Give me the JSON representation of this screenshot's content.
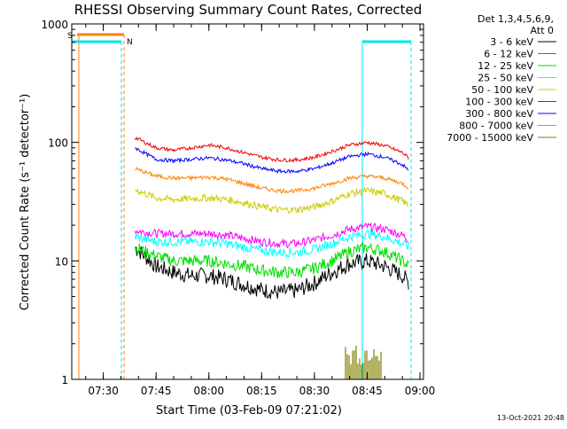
{
  "chart_data": {
    "type": "line",
    "title": "RHESSI Observing Summary Count Rates, Corrected",
    "xlabel": "Start Time (03-Feb-09 07:21:02)",
    "ylabel": "Corrected Count Rate (s⁻¹ detector⁻¹)",
    "y_scale": "log",
    "ylim": [
      1,
      1000
    ],
    "xlim": [
      "07:21:02",
      "09:01:00"
    ],
    "x_ticks": [
      "07:30",
      "07:45",
      "08:00",
      "08:15",
      "08:30",
      "08:45",
      "09:00"
    ],
    "y_ticks": [
      "1",
      "10",
      "100",
      "1000"
    ],
    "legend_position": "right",
    "legend_header": [
      "Det 1,3,4,5,6,9,",
      "Att 0"
    ],
    "x_sample_times": [
      "07:22",
      "07:38",
      "07:39",
      "07:45",
      "07:50",
      "07:55",
      "08:00",
      "08:05",
      "08:10",
      "08:15",
      "08:20",
      "08:25",
      "08:30",
      "08:35",
      "08:40",
      "08:45",
      "08:50",
      "08:55",
      "08:57"
    ],
    "series": [
      {
        "name": "3 - 6 keV",
        "color": "#000000",
        "values": [
          null,
          null,
          13,
          9,
          8,
          7.5,
          7.5,
          7,
          6.3,
          5.7,
          5.4,
          5.6,
          6.5,
          8,
          9.5,
          10,
          9,
          7.5,
          6.5
        ]
      },
      {
        "name": "6 - 12 keV",
        "color": "#ff00ff",
        "values": [
          null,
          null,
          18,
          17,
          17,
          17,
          17,
          16.5,
          15.5,
          14.5,
          14,
          14,
          15,
          16.5,
          18.5,
          19.5,
          18.5,
          16.5,
          15
        ]
      },
      {
        "name": "12 - 25 keV",
        "color": "#00dd00",
        "values": [
          null,
          null,
          13,
          11,
          10,
          10,
          10,
          9.5,
          9,
          8.3,
          8,
          8,
          8.7,
          10,
          12,
          13,
          12,
          10,
          9
        ]
      },
      {
        "name": "25 - 50 keV",
        "color": "#00ffff",
        "values": [
          null,
          null,
          16,
          14.5,
          14.5,
          14.5,
          14.5,
          14,
          13,
          12.3,
          11.8,
          11.8,
          12.5,
          14,
          16,
          17,
          16,
          14,
          13
        ]
      },
      {
        "name": "50 - 100 keV",
        "color": "#cccc00",
        "values": [
          null,
          null,
          40,
          34,
          33,
          33.5,
          34,
          33,
          31,
          28.5,
          27,
          27,
          28.5,
          32,
          37,
          39,
          37,
          32,
          29
        ]
      },
      {
        "name": "100 - 300 keV",
        "color": "#ee0000",
        "values": [
          null,
          null,
          110,
          90,
          86,
          90,
          95,
          90,
          82,
          75,
          71,
          71,
          75,
          84,
          95,
          100,
          94,
          82,
          73
        ]
      },
      {
        "name": "300 - 800 keV",
        "color": "#0000ff",
        "values": [
          null,
          null,
          90,
          72,
          70,
          72,
          74,
          71,
          66,
          60,
          57,
          57,
          60,
          67,
          76,
          80,
          75,
          65,
          57
        ]
      },
      {
        "name": "800 - 7000 keV",
        "color": "#ff8000",
        "values": [
          null,
          null,
          60,
          52,
          50,
          50,
          51,
          49,
          45,
          41,
          39,
          39,
          41,
          45,
          50,
          52,
          50,
          45,
          41
        ]
      },
      {
        "name": "7000 - 15000 keV",
        "color": "#808000",
        "values": []
      }
    ],
    "annotations": {
      "markers": [
        "S",
        "N"
      ],
      "footer_date": "13-Oct-2021 20:48"
    }
  }
}
